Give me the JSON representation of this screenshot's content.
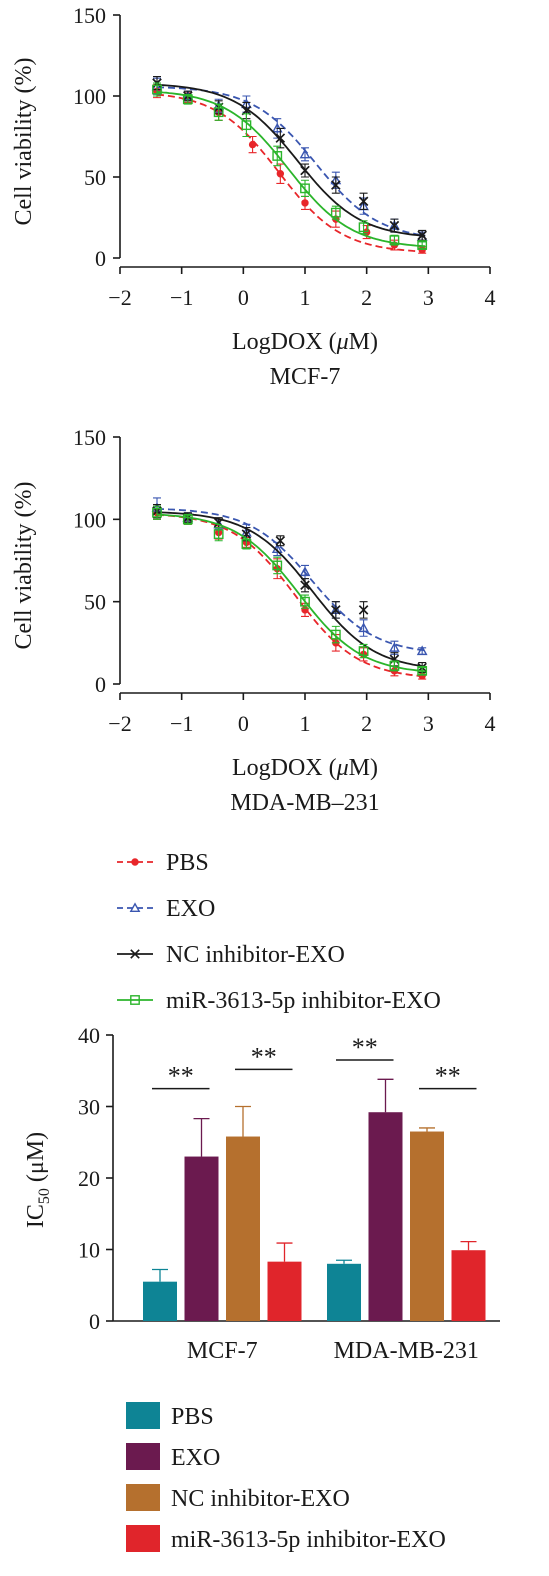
{
  "chart_data": [
    {
      "type": "line",
      "ylabel": "Cell viability (%)",
      "xlabel": "LogDOX (μM)",
      "subtitle": "MCF-7",
      "xlim": [
        -2,
        4
      ],
      "ylim": [
        0,
        150
      ],
      "xticks": [
        "−2",
        "−1",
        "0",
        "1",
        "2",
        "3",
        "4"
      ],
      "yticks": [
        "0",
        "50",
        "100",
        "150"
      ],
      "series": [
        {
          "name": "PBS",
          "color": "#e8262a",
          "marker": "circle",
          "dashed": true,
          "x": [
            -1.4,
            -0.9,
            -0.4,
            0.15,
            0.6,
            1.0,
            1.5,
            2.0,
            2.45,
            2.9
          ],
          "y": [
            103,
            99,
            90,
            70,
            52,
            34,
            24,
            16,
            8,
            5
          ],
          "err": [
            4,
            3,
            5,
            5,
            6,
            4,
            5,
            4,
            3,
            2
          ]
        },
        {
          "name": "EXO",
          "color": "#3a56b0",
          "marker": "triangle",
          "dashed": true,
          "x": [
            -1.4,
            -0.9,
            -0.4,
            0.05,
            0.55,
            1.0,
            1.5,
            1.95,
            2.45,
            2.9
          ],
          "y": [
            106,
            100,
            94,
            95,
            80,
            64,
            48,
            32,
            20,
            13
          ],
          "err": [
            5,
            3,
            4,
            5,
            6,
            4,
            5,
            5,
            4,
            3
          ]
        },
        {
          "name": "NC inhibitor-EXO",
          "color": "#1a1a1a",
          "marker": "x",
          "dashed": false,
          "x": [
            -1.4,
            -0.9,
            -0.4,
            0.05,
            0.6,
            1.0,
            1.5,
            1.95,
            2.45,
            2.9
          ],
          "y": [
            108,
            100,
            93,
            91,
            74,
            54,
            45,
            35,
            20,
            14
          ],
          "err": [
            4,
            3,
            4,
            5,
            6,
            4,
            5,
            5,
            4,
            3
          ]
        },
        {
          "name": "miR-3613-5p inhibitor-EXO",
          "color": "#2bb52b",
          "marker": "square",
          "dashed": false,
          "x": [
            -1.4,
            -0.9,
            -0.4,
            0.05,
            0.55,
            1.0,
            1.5,
            1.95,
            2.45,
            2.9
          ],
          "y": [
            104,
            98,
            90,
            82,
            63,
            43,
            28,
            19,
            11,
            8
          ],
          "err": [
            4,
            3,
            5,
            7,
            6,
            5,
            4,
            4,
            3,
            2
          ]
        }
      ]
    },
    {
      "type": "line",
      "ylabel": "Cell viability (%)",
      "xlabel": "LogDOX (μM)",
      "subtitle": "MDA-MB–231",
      "xlim": [
        -2,
        4
      ],
      "ylim": [
        0,
        150
      ],
      "xticks": [
        "−2",
        "−1",
        "0",
        "1",
        "2",
        "3",
        "4"
      ],
      "yticks": [
        "0",
        "50",
        "100",
        "150"
      ],
      "series": [
        {
          "name": "PBS",
          "color": "#e8262a",
          "marker": "circle",
          "dashed": true,
          "x": [
            -1.4,
            -0.9,
            -0.4,
            0.05,
            0.55,
            1.0,
            1.5,
            1.95,
            2.45,
            2.9
          ],
          "y": [
            104,
            100,
            92,
            86,
            70,
            45,
            25,
            18,
            8,
            5
          ],
          "err": [
            4,
            3,
            4,
            3,
            6,
            4,
            5,
            4,
            3,
            2
          ]
        },
        {
          "name": "EXO",
          "color": "#3a56b0",
          "marker": "triangle",
          "dashed": true,
          "x": [
            -1.4,
            -0.9,
            -0.4,
            0.05,
            0.55,
            1.0,
            1.5,
            1.95,
            2.45,
            2.9
          ],
          "y": [
            107,
            101,
            97,
            92,
            82,
            68,
            45,
            34,
            22,
            20
          ],
          "err": [
            6,
            3,
            3,
            5,
            4,
            4,
            5,
            5,
            4,
            2
          ]
        },
        {
          "name": "NC inhibitor-EXO",
          "color": "#1a1a1a",
          "marker": "x",
          "dashed": false,
          "x": [
            -1.4,
            -0.9,
            -0.4,
            0.05,
            0.6,
            1.0,
            1.5,
            1.95,
            2.45,
            2.9
          ],
          "y": [
            105,
            101,
            98,
            91,
            87,
            60,
            45,
            45,
            15,
            10
          ],
          "err": [
            4,
            3,
            3,
            4,
            3,
            4,
            5,
            5,
            4,
            3
          ]
        },
        {
          "name": "miR-3613-5p inhibitor-EXO",
          "color": "#2bb52b",
          "marker": "square",
          "dashed": false,
          "x": [
            -1.4,
            -0.9,
            -0.4,
            0.05,
            0.55,
            1.0,
            1.5,
            1.95,
            2.45,
            2.9
          ],
          "y": [
            104,
            100,
            91,
            85,
            72,
            50,
            30,
            20,
            11,
            8
          ],
          "err": [
            4,
            3,
            4,
            3,
            5,
            4,
            5,
            4,
            3,
            2
          ]
        }
      ]
    },
    {
      "type": "bar",
      "ylabel": "IC50 (μM)",
      "ylim": [
        0,
        40
      ],
      "yticks": [
        "0",
        "10",
        "20",
        "30",
        "40"
      ],
      "categories": [
        "MCF-7",
        "MDA-MB-231"
      ],
      "series": [
        {
          "name": "PBS",
          "color": "#0e8495",
          "values": [
            5.5,
            8.0
          ],
          "err": [
            1.7,
            0.5
          ]
        },
        {
          "name": "EXO",
          "color": "#6b1a4f",
          "values": [
            23.0,
            29.2
          ],
          "err": [
            5.3,
            4.6
          ]
        },
        {
          "name": "NC inhibitor-EXO",
          "color": "#b5702e",
          "values": [
            25.8,
            26.5
          ],
          "err": [
            4.2,
            0.5
          ]
        },
        {
          "name": "miR-3613-5p inhibitor-EXO",
          "color": "#e0252b",
          "values": [
            8.3,
            9.9
          ],
          "err": [
            2.6,
            1.2
          ]
        }
      ],
      "annotations": [
        {
          "text": "**",
          "category": 0,
          "from_series": 0,
          "to_series": 1,
          "y": 32.5
        },
        {
          "text": "**",
          "category": 0,
          "from_series": 2,
          "to_series": 3,
          "y": 35.2
        },
        {
          "text": "**",
          "category": 1,
          "from_series": 0,
          "to_series": 1,
          "y": 36.5
        },
        {
          "text": "**",
          "category": 1,
          "from_series": 2,
          "to_series": 3,
          "y": 32.5
        }
      ]
    }
  ],
  "legend_lines": {
    "items": [
      "PBS",
      "EXO",
      "NC inhibitor-EXO",
      "miR-3613-5p inhibitor-EXO"
    ]
  },
  "legend_bars": {
    "items": [
      "PBS",
      "EXO",
      "NC inhibitor-EXO",
      "miR-3613-5p inhibitor-EXO"
    ]
  }
}
